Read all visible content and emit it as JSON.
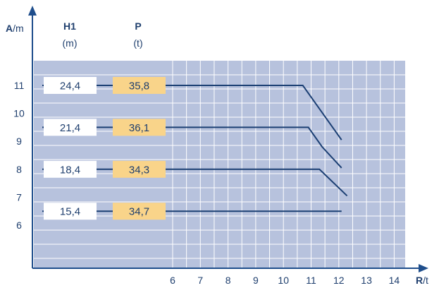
{
  "chart_data": {
    "type": "line",
    "x_axis": {
      "label_bold": "R",
      "label_unit": "/t",
      "ticks": [
        "6",
        "7",
        "8",
        "9",
        "10",
        "11",
        "12",
        "13",
        "14"
      ],
      "range": [
        6,
        14
      ]
    },
    "y_axis": {
      "label_bold": "A",
      "label_unit": "/m",
      "ticks": [
        "6",
        "7",
        "8",
        "9",
        "10",
        "11"
      ]
    },
    "columns": [
      {
        "header": "H1",
        "unit": "(m)"
      },
      {
        "header": "P",
        "unit": "(t)"
      }
    ],
    "grid": true,
    "series": [
      {
        "h1": "24,4",
        "p": "35,8",
        "y": 11,
        "points": [
          [
            10.7,
            11.0
          ],
          [
            12.1,
            9.05
          ]
        ]
      },
      {
        "h1": "21,4",
        "p": "36,1",
        "y": 9.5,
        "points": [
          [
            10.9,
            9.5
          ],
          [
            11.4,
            8.8
          ],
          [
            12.1,
            8.05
          ]
        ]
      },
      {
        "h1": "18,4",
        "p": "34,3",
        "y": 8,
        "points": [
          [
            11.3,
            8.0
          ],
          [
            12.3,
            7.05
          ]
        ]
      },
      {
        "h1": "15,4",
        "p": "34,7",
        "y": 6.5,
        "points": [
          [
            12.1,
            6.5
          ]
        ]
      }
    ]
  },
  "colors": {
    "axis": "#1f4e8c",
    "text": "#1f3f6e",
    "grid_bg": "#b7c2dd",
    "grid_line": "#ffffff",
    "line": "#1b3f73",
    "h1_box": "#ffffff",
    "p_box": "#f9d48a"
  }
}
